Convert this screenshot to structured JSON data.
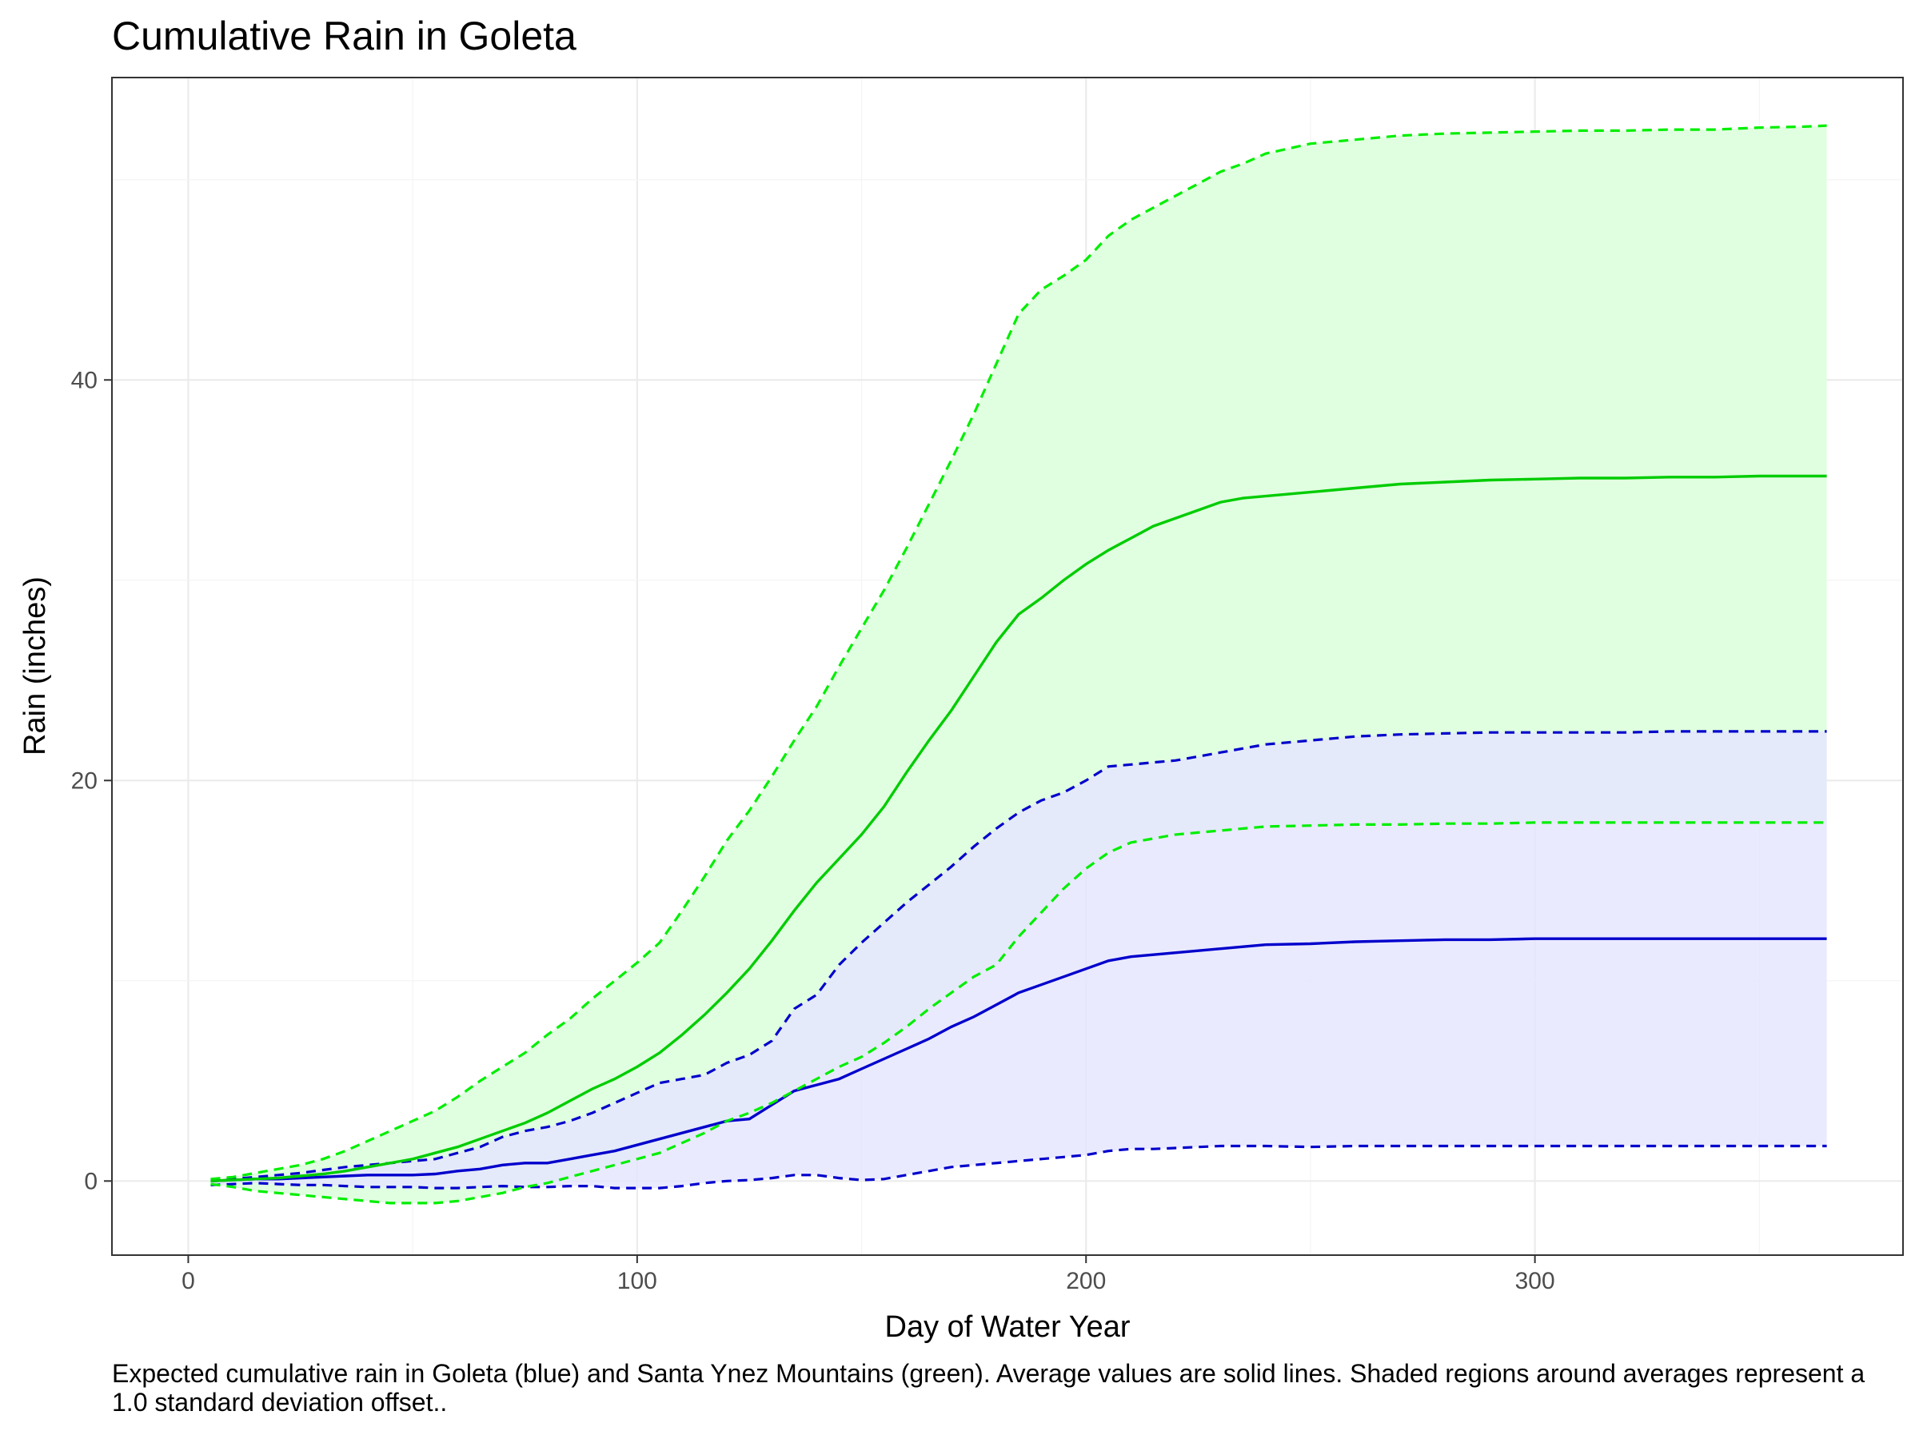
{
  "chart_data": {
    "type": "area",
    "title": "Cumulative Rain in Goleta",
    "xlabel": "Day of Water Year",
    "ylabel": "Rain (inches)",
    "caption": "Expected cumulative rain in Goleta (blue) and Santa Ynez Mountains (green). Average values are solid lines. Shaded regions around averages represent a 1.0 standard deviation offset..",
    "xlim": [
      -17,
      382
    ],
    "ylim": [
      -3.7,
      55.1
    ],
    "x_ticks": [
      0,
      100,
      200,
      300
    ],
    "x_tick_labels": [
      "0",
      "100",
      "200",
      "300"
    ],
    "y_ticks": [
      0,
      20,
      40
    ],
    "y_tick_labels": [
      "0",
      "20",
      "40"
    ],
    "grid": true,
    "legend": "none",
    "x": [
      5,
      10,
      15,
      20,
      25,
      30,
      35,
      40,
      45,
      50,
      55,
      60,
      65,
      70,
      75,
      80,
      85,
      90,
      95,
      100,
      105,
      110,
      115,
      120,
      125,
      130,
      135,
      140,
      145,
      150,
      155,
      160,
      165,
      170,
      175,
      180,
      185,
      190,
      195,
      200,
      205,
      210,
      215,
      220,
      225,
      230,
      235,
      240,
      250,
      260,
      270,
      280,
      290,
      300,
      310,
      320,
      330,
      340,
      350,
      360,
      365
    ],
    "series": [
      {
        "name": "Goleta",
        "color": "#0000cc",
        "fill": "#e5e5ff",
        "mean": [
          0,
          0.05,
          0.1,
          0.1,
          0.15,
          0.2,
          0.25,
          0.3,
          0.3,
          0.3,
          0.35,
          0.5,
          0.6,
          0.8,
          0.9,
          0.9,
          1.1,
          1.3,
          1.5,
          1.8,
          2.1,
          2.4,
          2.7,
          3.0,
          3.1,
          3.8,
          4.5,
          4.8,
          5.1,
          5.6,
          6.1,
          6.6,
          7.1,
          7.7,
          8.2,
          8.8,
          9.4,
          9.8,
          10.2,
          10.6,
          11.0,
          11.2,
          11.3,
          11.4,
          11.5,
          11.6,
          11.7,
          11.8,
          11.85,
          11.95,
          12.0,
          12.05,
          12.05,
          12.1,
          12.1,
          12.1,
          12.1,
          12.1,
          12.1,
          12.1,
          12.1
        ],
        "upper": [
          0,
          0.1,
          0.2,
          0.3,
          0.4,
          0.55,
          0.7,
          0.8,
          0.9,
          1.0,
          1.1,
          1.4,
          1.7,
          2.2,
          2.5,
          2.7,
          3.0,
          3.4,
          3.9,
          4.4,
          4.9,
          5.1,
          5.3,
          5.9,
          6.3,
          7.0,
          8.6,
          9.3,
          10.8,
          11.9,
          12.9,
          13.9,
          14.8,
          15.7,
          16.7,
          17.6,
          18.4,
          19.0,
          19.4,
          20.0,
          20.7,
          20.8,
          20.9,
          21.0,
          21.2,
          21.4,
          21.6,
          21.8,
          22.0,
          22.2,
          22.3,
          22.35,
          22.4,
          22.4,
          22.4,
          22.4,
          22.45,
          22.45,
          22.45,
          22.45,
          22.45
        ],
        "lower": [
          -0.2,
          -0.15,
          -0.1,
          -0.15,
          -0.2,
          -0.2,
          -0.25,
          -0.3,
          -0.3,
          -0.3,
          -0.35,
          -0.35,
          -0.3,
          -0.25,
          -0.3,
          -0.3,
          -0.25,
          -0.25,
          -0.35,
          -0.35,
          -0.35,
          -0.25,
          -0.1,
          0,
          0.05,
          0.15,
          0.3,
          0.3,
          0.15,
          0.05,
          0.1,
          0.3,
          0.5,
          0.7,
          0.8,
          0.9,
          1.0,
          1.1,
          1.2,
          1.3,
          1.5,
          1.6,
          1.6,
          1.65,
          1.7,
          1.75,
          1.75,
          1.75,
          1.7,
          1.75,
          1.75,
          1.75,
          1.75,
          1.75,
          1.75,
          1.75,
          1.75,
          1.75,
          1.75,
          1.75,
          1.75
        ]
      },
      {
        "name": "Santa Ynez Mountains",
        "color": "#00cc00",
        "dash_color": "#00ee00",
        "fill": "#e0ffe0",
        "mean": [
          0,
          0.05,
          0.1,
          0.15,
          0.25,
          0.35,
          0.5,
          0.7,
          0.9,
          1.1,
          1.4,
          1.7,
          2.1,
          2.5,
          2.9,
          3.4,
          4.0,
          4.6,
          5.1,
          5.7,
          6.4,
          7.3,
          8.3,
          9.4,
          10.6,
          12.0,
          13.5,
          14.9,
          16.1,
          17.3,
          18.7,
          20.4,
          22.0,
          23.5,
          25.2,
          26.9,
          28.3,
          29.1,
          30.0,
          30.8,
          31.5,
          32.1,
          32.7,
          33.1,
          33.5,
          33.9,
          34.1,
          34.2,
          34.4,
          34.6,
          34.8,
          34.9,
          35.0,
          35.05,
          35.1,
          35.1,
          35.15,
          35.15,
          35.2,
          35.2,
          35.2
        ],
        "upper": [
          0.1,
          0.2,
          0.4,
          0.6,
          0.8,
          1.1,
          1.5,
          2.0,
          2.5,
          3.0,
          3.5,
          4.2,
          5.0,
          5.7,
          6.4,
          7.3,
          8.1,
          9.1,
          10.0,
          10.9,
          11.9,
          13.5,
          15.2,
          17.0,
          18.5,
          20.2,
          22.0,
          23.7,
          25.7,
          27.6,
          29.5,
          31.6,
          33.8,
          36.0,
          38.3,
          40.8,
          43.3,
          44.5,
          45.2,
          46.0,
          47.2,
          48.0,
          48.6,
          49.2,
          49.8,
          50.4,
          50.8,
          51.3,
          51.8,
          52.0,
          52.2,
          52.3,
          52.35,
          52.4,
          52.45,
          52.45,
          52.5,
          52.5,
          52.6,
          52.65,
          52.7
        ],
        "lower": [
          -0.15,
          -0.3,
          -0.5,
          -0.6,
          -0.7,
          -0.8,
          -0.9,
          -1.0,
          -1.1,
          -1.1,
          -1.1,
          -1.0,
          -0.8,
          -0.6,
          -0.3,
          -0.1,
          0.2,
          0.5,
          0.8,
          1.1,
          1.4,
          1.9,
          2.4,
          3.0,
          3.4,
          3.9,
          4.5,
          5.1,
          5.7,
          6.2,
          6.9,
          7.7,
          8.6,
          9.4,
          10.2,
          10.8,
          12.2,
          13.4,
          14.6,
          15.6,
          16.4,
          16.9,
          17.1,
          17.3,
          17.4,
          17.5,
          17.6,
          17.7,
          17.75,
          17.8,
          17.8,
          17.85,
          17.85,
          17.9,
          17.9,
          17.9,
          17.9,
          17.9,
          17.9,
          17.9,
          17.9
        ]
      }
    ]
  }
}
